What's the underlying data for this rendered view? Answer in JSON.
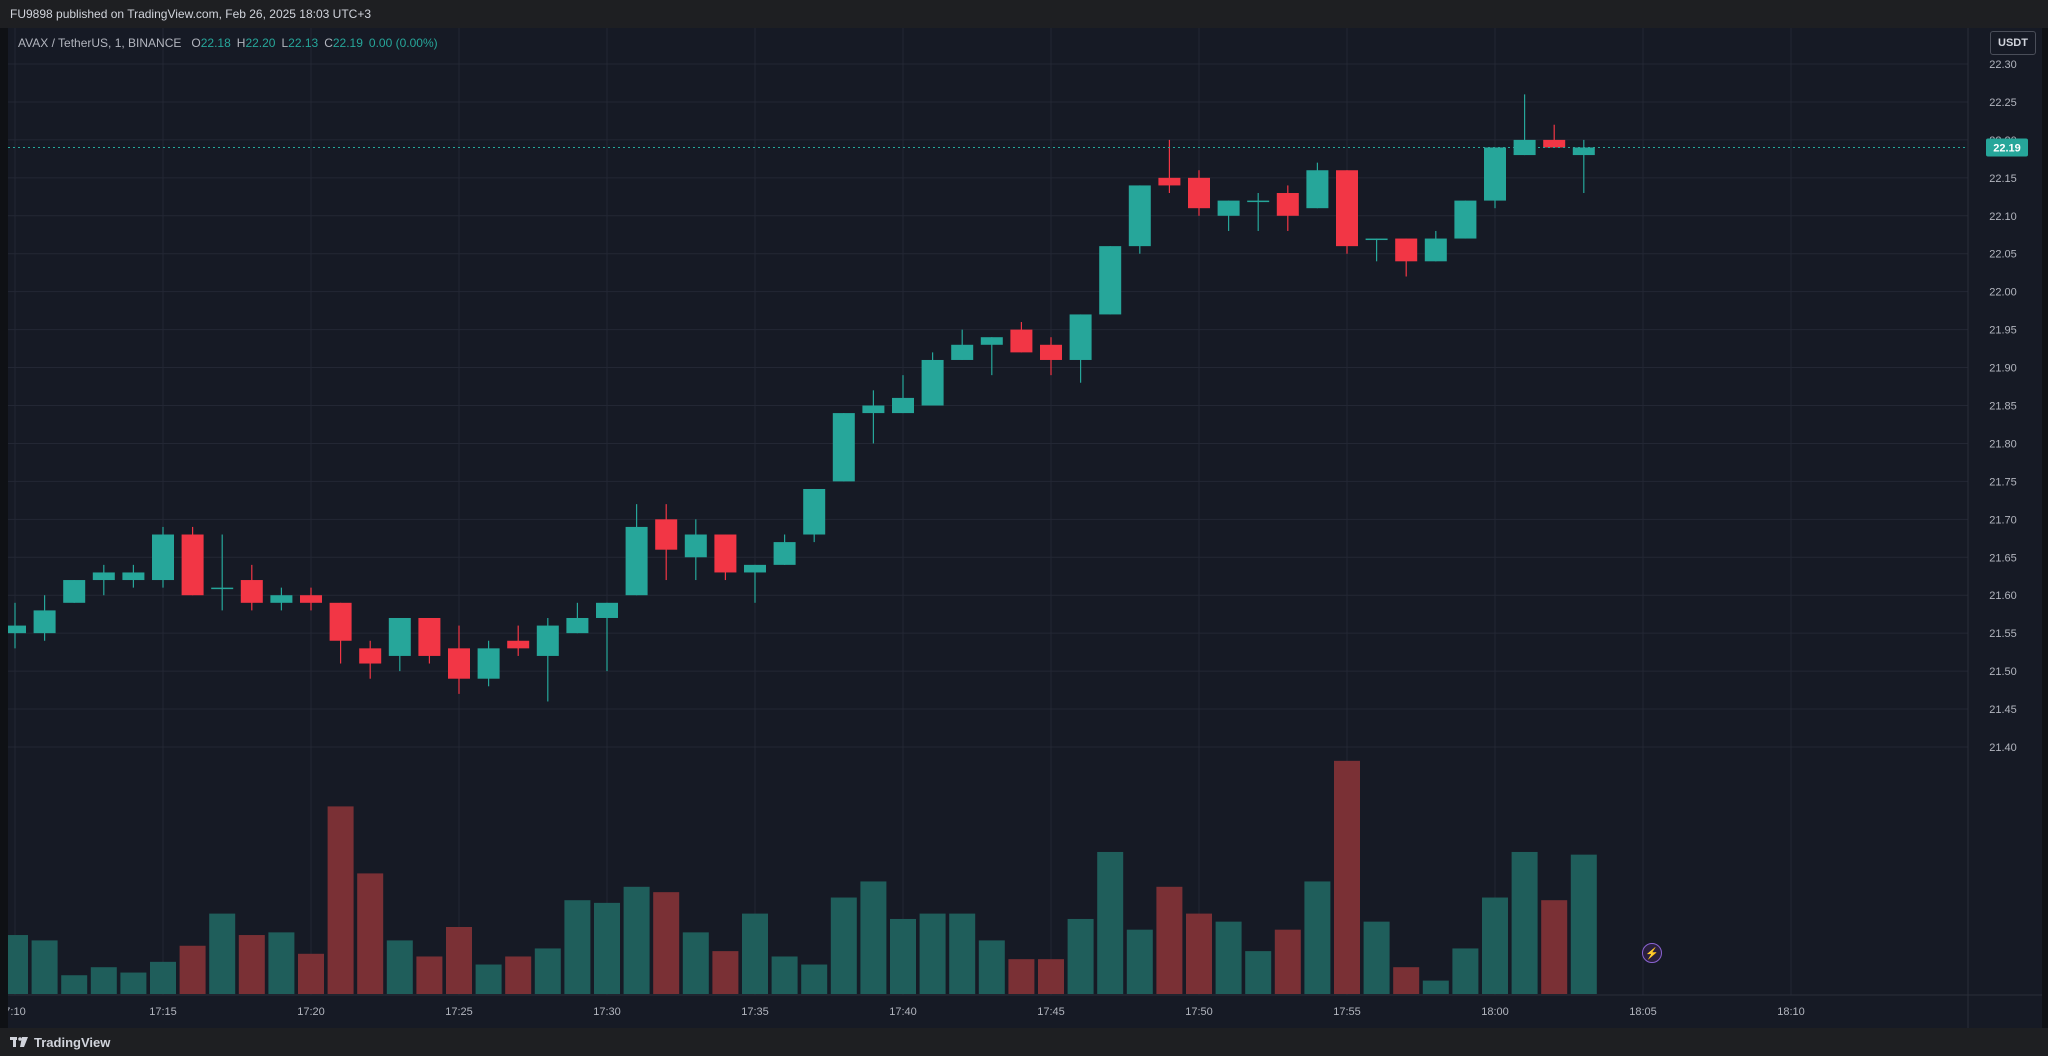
{
  "header": {
    "published_text": "FU9898 published on TradingView.com, Feb 26, 2025 18:03 UTC+3"
  },
  "legend": {
    "symbol": "AVAX / TetherUS, 1, BINANCE",
    "o_label": "O",
    "o_value": "22.18",
    "h_label": "H",
    "h_value": "22.20",
    "l_label": "L",
    "l_value": "22.13",
    "c_label": "C",
    "c_value": "22.19",
    "change": "0.00 (0.00%)"
  },
  "currency_button": "USDT",
  "footer": {
    "brand": "TradingView"
  },
  "colors": {
    "bg": "#161a25",
    "grid": "#232734",
    "up": "#26a69a",
    "down": "#f23645",
    "vol_up": "#1f5e5b",
    "vol_down": "#7a3035",
    "axis_text": "#b2b5be"
  },
  "chart_data": {
    "type": "candlestick",
    "title": "",
    "xlabel": "",
    "ylabel": "",
    "ylim": [
      21.38,
      22.33
    ],
    "y_ticks": [
      "22.30",
      "22.25",
      "22.20",
      "22.15",
      "22.10",
      "22.05",
      "22.00",
      "21.95",
      "21.90",
      "21.85",
      "21.80",
      "21.75",
      "21.70",
      "21.65",
      "21.60",
      "21.55",
      "21.50",
      "21.45",
      "21.40"
    ],
    "x_ticks": [
      "7:10",
      "17:15",
      "17:20",
      "17:25",
      "17:30",
      "17:35",
      "17:40",
      "17:45",
      "17:50",
      "17:55",
      "18:00",
      "18:05",
      "18:10"
    ],
    "last_price": "22.19",
    "candles": [
      {
        "t": "17:10",
        "o": 21.55,
        "h": 21.59,
        "l": 21.53,
        "c": 21.56
      },
      {
        "t": "17:11",
        "o": 21.55,
        "h": 21.6,
        "l": 21.54,
        "c": 21.58
      },
      {
        "t": "17:12",
        "o": 21.59,
        "h": 21.62,
        "l": 21.59,
        "c": 21.62
      },
      {
        "t": "17:13",
        "o": 21.62,
        "h": 21.64,
        "l": 21.6,
        "c": 21.63
      },
      {
        "t": "17:14",
        "o": 21.62,
        "h": 21.64,
        "l": 21.61,
        "c": 21.63
      },
      {
        "t": "17:15",
        "o": 21.62,
        "h": 21.69,
        "l": 21.61,
        "c": 21.68
      },
      {
        "t": "17:16",
        "o": 21.68,
        "h": 21.69,
        "l": 21.6,
        "c": 21.6
      },
      {
        "t": "17:17",
        "o": 21.61,
        "h": 21.68,
        "l": 21.58,
        "c": 21.61
      },
      {
        "t": "17:18",
        "o": 21.62,
        "h": 21.64,
        "l": 21.58,
        "c": 21.59
      },
      {
        "t": "17:19",
        "o": 21.59,
        "h": 21.61,
        "l": 21.58,
        "c": 21.6
      },
      {
        "t": "17:20",
        "o": 21.6,
        "h": 21.61,
        "l": 21.58,
        "c": 21.59
      },
      {
        "t": "17:21",
        "o": 21.59,
        "h": 21.59,
        "l": 21.51,
        "c": 21.54
      },
      {
        "t": "17:22",
        "o": 21.53,
        "h": 21.54,
        "l": 21.49,
        "c": 21.51
      },
      {
        "t": "17:23",
        "o": 21.52,
        "h": 21.57,
        "l": 21.5,
        "c": 21.57
      },
      {
        "t": "17:24",
        "o": 21.57,
        "h": 21.57,
        "l": 21.51,
        "c": 21.52
      },
      {
        "t": "17:25",
        "o": 21.53,
        "h": 21.56,
        "l": 21.47,
        "c": 21.49
      },
      {
        "t": "17:26",
        "o": 21.49,
        "h": 21.54,
        "l": 21.48,
        "c": 21.53
      },
      {
        "t": "17:27",
        "o": 21.54,
        "h": 21.56,
        "l": 21.52,
        "c": 21.53
      },
      {
        "t": "17:28",
        "o": 21.52,
        "h": 21.57,
        "l": 21.46,
        "c": 21.56
      },
      {
        "t": "17:29",
        "o": 21.55,
        "h": 21.59,
        "l": 21.55,
        "c": 21.57
      },
      {
        "t": "17:30",
        "o": 21.57,
        "h": 21.59,
        "l": 21.5,
        "c": 21.59
      },
      {
        "t": "17:31",
        "o": 21.6,
        "h": 21.72,
        "l": 21.6,
        "c": 21.69
      },
      {
        "t": "17:32",
        "o": 21.7,
        "h": 21.72,
        "l": 21.62,
        "c": 21.66
      },
      {
        "t": "17:33",
        "o": 21.65,
        "h": 21.7,
        "l": 21.62,
        "c": 21.68
      },
      {
        "t": "17:34",
        "o": 21.68,
        "h": 21.68,
        "l": 21.62,
        "c": 21.63
      },
      {
        "t": "17:35",
        "o": 21.63,
        "h": 21.64,
        "l": 21.59,
        "c": 21.64
      },
      {
        "t": "17:36",
        "o": 21.64,
        "h": 21.68,
        "l": 21.64,
        "c": 21.67
      },
      {
        "t": "17:37",
        "o": 21.68,
        "h": 21.74,
        "l": 21.67,
        "c": 21.74
      },
      {
        "t": "17:38",
        "o": 21.75,
        "h": 21.84,
        "l": 21.75,
        "c": 21.84
      },
      {
        "t": "17:39",
        "o": 21.84,
        "h": 21.87,
        "l": 21.8,
        "c": 21.85
      },
      {
        "t": "17:40",
        "o": 21.84,
        "h": 21.89,
        "l": 21.84,
        "c": 21.86
      },
      {
        "t": "17:41",
        "o": 21.85,
        "h": 21.92,
        "l": 21.85,
        "c": 21.91
      },
      {
        "t": "17:42",
        "o": 21.91,
        "h": 21.95,
        "l": 21.91,
        "c": 21.93
      },
      {
        "t": "17:43",
        "o": 21.93,
        "h": 21.94,
        "l": 21.89,
        "c": 21.94
      },
      {
        "t": "17:44",
        "o": 21.95,
        "h": 21.96,
        "l": 21.92,
        "c": 21.92
      },
      {
        "t": "17:45",
        "o": 21.93,
        "h": 21.94,
        "l": 21.89,
        "c": 21.91
      },
      {
        "t": "17:46",
        "o": 21.91,
        "h": 21.97,
        "l": 21.88,
        "c": 21.97
      },
      {
        "t": "17:47",
        "o": 21.97,
        "h": 22.06,
        "l": 21.97,
        "c": 22.06
      },
      {
        "t": "17:48",
        "o": 22.06,
        "h": 22.14,
        "l": 22.05,
        "c": 22.14
      },
      {
        "t": "17:49",
        "o": 22.15,
        "h": 22.2,
        "l": 22.13,
        "c": 22.14
      },
      {
        "t": "17:50",
        "o": 22.15,
        "h": 22.16,
        "l": 22.1,
        "c": 22.11
      },
      {
        "t": "17:51",
        "o": 22.1,
        "h": 22.12,
        "l": 22.08,
        "c": 22.12
      },
      {
        "t": "17:52",
        "o": 22.12,
        "h": 22.13,
        "l": 22.08,
        "c": 22.12
      },
      {
        "t": "17:53",
        "o": 22.13,
        "h": 22.14,
        "l": 22.08,
        "c": 22.1
      },
      {
        "t": "17:54",
        "o": 22.11,
        "h": 22.17,
        "l": 22.11,
        "c": 22.16
      },
      {
        "t": "17:55",
        "o": 22.16,
        "h": 22.16,
        "l": 22.05,
        "c": 22.06
      },
      {
        "t": "17:56",
        "o": 22.07,
        "h": 22.07,
        "l": 22.04,
        "c": 22.07
      },
      {
        "t": "17:57",
        "o": 22.07,
        "h": 22.07,
        "l": 22.02,
        "c": 22.04
      },
      {
        "t": "17:58",
        "o": 22.04,
        "h": 22.08,
        "l": 22.04,
        "c": 22.07
      },
      {
        "t": "17:59",
        "o": 22.07,
        "h": 22.12,
        "l": 22.07,
        "c": 22.12
      },
      {
        "t": "18:00",
        "o": 22.12,
        "h": 22.19,
        "l": 22.11,
        "c": 22.19
      },
      {
        "t": "18:01",
        "o": 22.18,
        "h": 22.26,
        "l": 22.18,
        "c": 22.2
      },
      {
        "t": "18:02",
        "o": 22.2,
        "h": 22.22,
        "l": 22.19,
        "c": 22.19
      },
      {
        "t": "18:03",
        "o": 22.18,
        "h": 22.2,
        "l": 22.13,
        "c": 22.19
      }
    ],
    "volume_relative": [
      0.22,
      0.2,
      0.07,
      0.1,
      0.08,
      0.12,
      0.18,
      0.3,
      0.22,
      0.23,
      0.15,
      0.7,
      0.45,
      0.2,
      0.14,
      0.25,
      0.11,
      0.14,
      0.17,
      0.35,
      0.34,
      0.4,
      0.38,
      0.23,
      0.16,
      0.3,
      0.14,
      0.11,
      0.36,
      0.42,
      0.28,
      0.3,
      0.3,
      0.2,
      0.13,
      0.13,
      0.28,
      0.53,
      0.24,
      0.4,
      0.3,
      0.27,
      0.16,
      0.24,
      0.42,
      0.87,
      0.27,
      0.1,
      0.05,
      0.17,
      0.36,
      0.53,
      0.35,
      0.52
    ]
  }
}
